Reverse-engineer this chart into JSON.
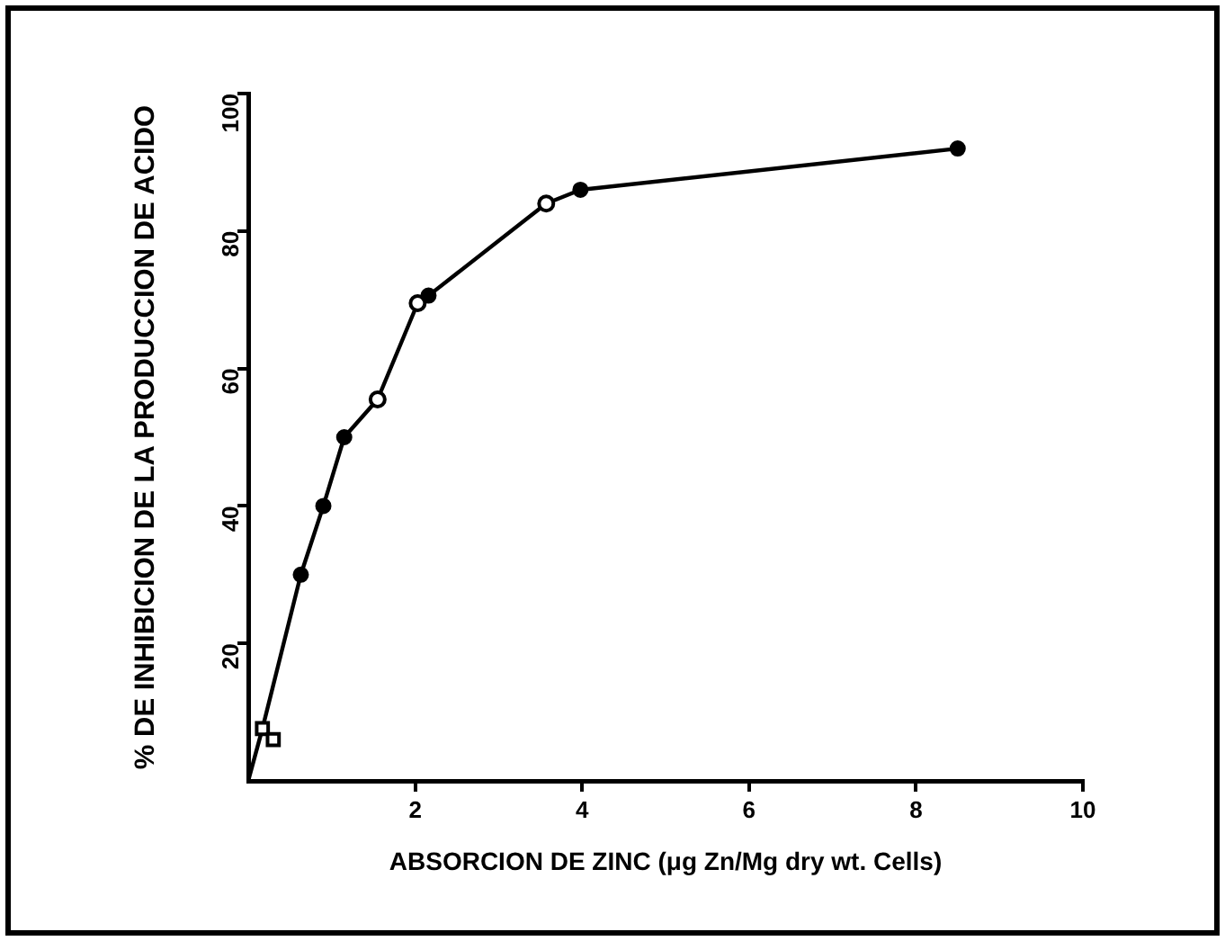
{
  "chart_data": {
    "type": "line",
    "xlabel": "ABSORCION DE ZINC (μg Zn/Mg dry wt. Cells)",
    "ylabel": "% DE INHIBICION DE LA PRODUCCION DE ACIDO",
    "xlim": [
      0,
      10
    ],
    "ylim": [
      0,
      100
    ],
    "xticks": [
      2,
      4,
      6,
      8,
      10
    ],
    "yticks": [
      20,
      40,
      60,
      80,
      100
    ],
    "grid": false,
    "legend": false,
    "series": [
      {
        "type": "line",
        "color": "#000000",
        "marker": "none",
        "x": [
          0,
          0.17,
          0.63,
          0.9,
          1.15,
          1.55,
          2.03,
          2.16,
          3.57,
          3.98,
          8.5
        ],
        "values": [
          0,
          7.6,
          30,
          40,
          50,
          55.5,
          69.5,
          70.6,
          84,
          86,
          92
        ]
      },
      {
        "type": "scatter",
        "color": "#000000",
        "marker": "circle",
        "x": [
          0.63,
          0.9,
          1.15,
          2.16,
          3.98,
          8.5
        ],
        "values": [
          30,
          40,
          50,
          70.6,
          86,
          92
        ]
      },
      {
        "type": "scatter",
        "color": "#000000",
        "marker": "circle-open",
        "x": [
          1.55,
          2.03,
          3.57
        ],
        "values": [
          55.5,
          69.5,
          84
        ]
      },
      {
        "type": "scatter",
        "color": "#000000",
        "marker": "square-open",
        "x": [
          0.17,
          0.3
        ],
        "values": [
          7.6,
          6
        ]
      }
    ]
  }
}
